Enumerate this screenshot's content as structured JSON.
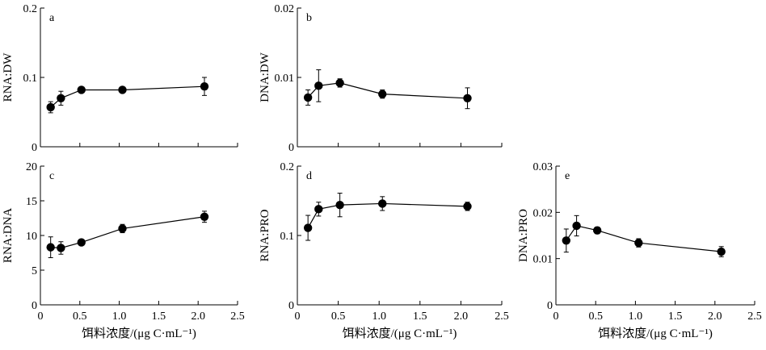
{
  "chart_data": [
    {
      "panel_label": "a",
      "type": "line",
      "ylabel": "RNA:DW",
      "xlabel": "",
      "xlim": [
        0,
        2.5
      ],
      "ylim": [
        0,
        0.2
      ],
      "yticks": [
        "0",
        "0.1",
        "0.2"
      ],
      "xticks": [],
      "series": [
        {
          "x": [
            0.13,
            0.26,
            0.52,
            1.04,
            2.08
          ],
          "y": [
            0.057,
            0.07,
            0.082,
            0.082,
            0.087
          ],
          "err": [
            0.008,
            0.01,
            0.004,
            0.003,
            0.013
          ]
        }
      ]
    },
    {
      "panel_label": "b",
      "type": "line",
      "ylabel": "DNA:DW",
      "xlabel": "",
      "xlim": [
        0,
        2.5
      ],
      "ylim": [
        0,
        0.02
      ],
      "yticks": [
        "0",
        "0.01",
        "0.02"
      ],
      "xticks": [],
      "series": [
        {
          "x": [
            0.13,
            0.26,
            0.52,
            1.04,
            2.08
          ],
          "y": [
            0.0071,
            0.0088,
            0.0092,
            0.0076,
            0.007
          ],
          "err": [
            0.0011,
            0.0023,
            0.0006,
            0.0006,
            0.0015
          ]
        }
      ]
    },
    {
      "panel_label": "c",
      "type": "line",
      "ylabel": "RNA:DNA",
      "xlabel": "饵料浓度/(μg C·mL⁻¹)",
      "xlim": [
        0,
        2.5
      ],
      "ylim": [
        0,
        20
      ],
      "yticks": [
        "0",
        "5",
        "10",
        "15",
        "20"
      ],
      "xticks": [
        "0",
        "0.5",
        "1.0",
        "1.5",
        "2.0",
        "2.5"
      ],
      "series": [
        {
          "x": [
            0.13,
            0.26,
            0.52,
            1.04,
            2.08
          ],
          "y": [
            8.3,
            8.2,
            9.0,
            11.0,
            12.7
          ],
          "err": [
            1.5,
            0.9,
            0.4,
            0.6,
            0.8
          ]
        }
      ]
    },
    {
      "panel_label": "d",
      "type": "line",
      "ylabel": "RNA:PRO",
      "xlabel": "饵料浓度/(μg C·mL⁻¹)",
      "xlim": [
        0,
        2.5
      ],
      "ylim": [
        0,
        0.2
      ],
      "yticks": [
        "0",
        "0.1",
        "0.2"
      ],
      "xticks": [
        "0",
        "0.5",
        "1.0",
        "1.5",
        "2.0",
        "2.5"
      ],
      "series": [
        {
          "x": [
            0.13,
            0.26,
            0.52,
            1.04,
            2.08
          ],
          "y": [
            0.111,
            0.138,
            0.144,
            0.146,
            0.142
          ],
          "err": [
            0.018,
            0.01,
            0.017,
            0.01,
            0.006
          ]
        }
      ]
    },
    {
      "panel_label": "e",
      "type": "line",
      "ylabel": "DNA:PRO",
      "xlabel": "饵料浓度/(μg C·mL⁻¹)",
      "xlim": [
        0,
        2.5
      ],
      "ylim": [
        0,
        0.03
      ],
      "yticks": [
        "0",
        "0.01",
        "0.02",
        "0.03"
      ],
      "xticks": [
        "0",
        "0.5",
        "1.0",
        "1.5",
        "2.0",
        "2.5"
      ],
      "series": [
        {
          "x": [
            0.13,
            0.26,
            0.52,
            1.04,
            2.08
          ],
          "y": [
            0.0139,
            0.0171,
            0.0161,
            0.0134,
            0.0115
          ],
          "err": [
            0.0025,
            0.0022,
            0.0007,
            0.0009,
            0.0011
          ]
        }
      ]
    }
  ]
}
